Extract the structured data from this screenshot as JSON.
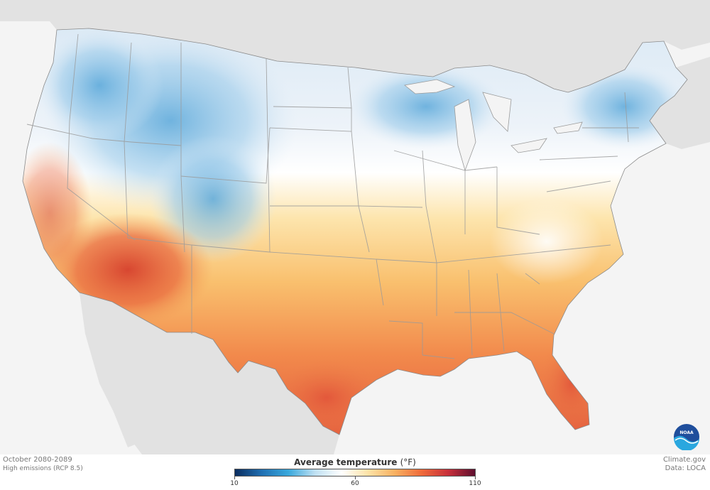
{
  "map": {
    "period": "October 2080-2089",
    "scenario": "High emissions (RCP 8.5)",
    "colors": {
      "land_background": "#e2e2e2",
      "water_background": "#f4f4f4",
      "state_lines": "#9a9a9a",
      "cold_blue": "#3b8fcf",
      "light_blue": "#cfe1f0",
      "white": "#ffffff",
      "light_orange": "#fcd48a",
      "orange": "#f2854a",
      "red": "#d8442e"
    }
  },
  "legend": {
    "title": "Average temperature",
    "unit": "(°F)",
    "ticks": [
      "10",
      "60",
      "110"
    ],
    "scale": {
      "min": 10,
      "mid": 60,
      "max": 110
    },
    "colors": [
      "#0a2c5e",
      "#1f6fb2",
      "#39a8dc",
      "#bfe0f2",
      "#ffffff",
      "#fde2a6",
      "#f8b060",
      "#ef6a3a",
      "#c72f3a",
      "#5e0f2f"
    ]
  },
  "credits": {
    "site": "Climate.gov",
    "data": "Data: LOCA"
  },
  "logo": {
    "text": "NOAA"
  }
}
